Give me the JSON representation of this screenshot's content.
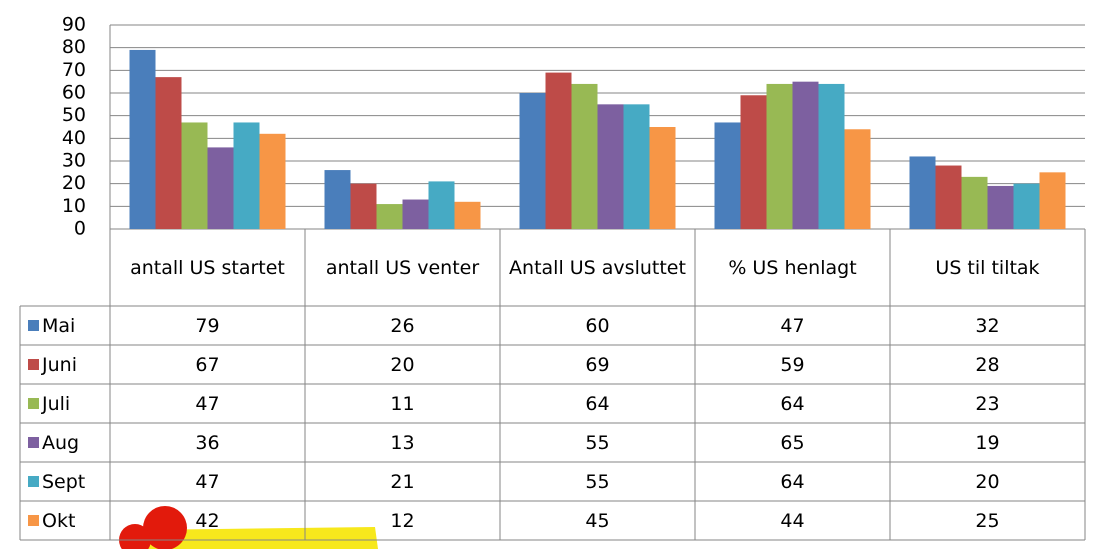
{
  "chart_data": {
    "type": "bar",
    "categories": [
      "antall US startet",
      "antall US venter",
      "Antall US avsluttet",
      "% US henlagt",
      "US til tiltak"
    ],
    "series": [
      {
        "name": "Mai",
        "color": "#4a7ebb",
        "values": [
          79,
          26,
          60,
          47,
          32
        ]
      },
      {
        "name": "Juni",
        "color": "#be4b48",
        "values": [
          67,
          20,
          69,
          59,
          28
        ]
      },
      {
        "name": "Juli",
        "color": "#98b954",
        "values": [
          47,
          11,
          64,
          64,
          23
        ]
      },
      {
        "name": "Aug",
        "color": "#7d60a0",
        "values": [
          36,
          13,
          55,
          65,
          19
        ]
      },
      {
        "name": "Sept",
        "color": "#46aac4",
        "values": [
          47,
          21,
          55,
          64,
          20
        ]
      },
      {
        "name": "Okt",
        "color": "#f79646",
        "values": [
          42,
          12,
          45,
          44,
          25
        ]
      }
    ],
    "ylim": [
      0,
      90
    ],
    "yticks": [
      0,
      10,
      20,
      30,
      40,
      50,
      60,
      70,
      80,
      90
    ],
    "grid": true,
    "data_table": true
  }
}
